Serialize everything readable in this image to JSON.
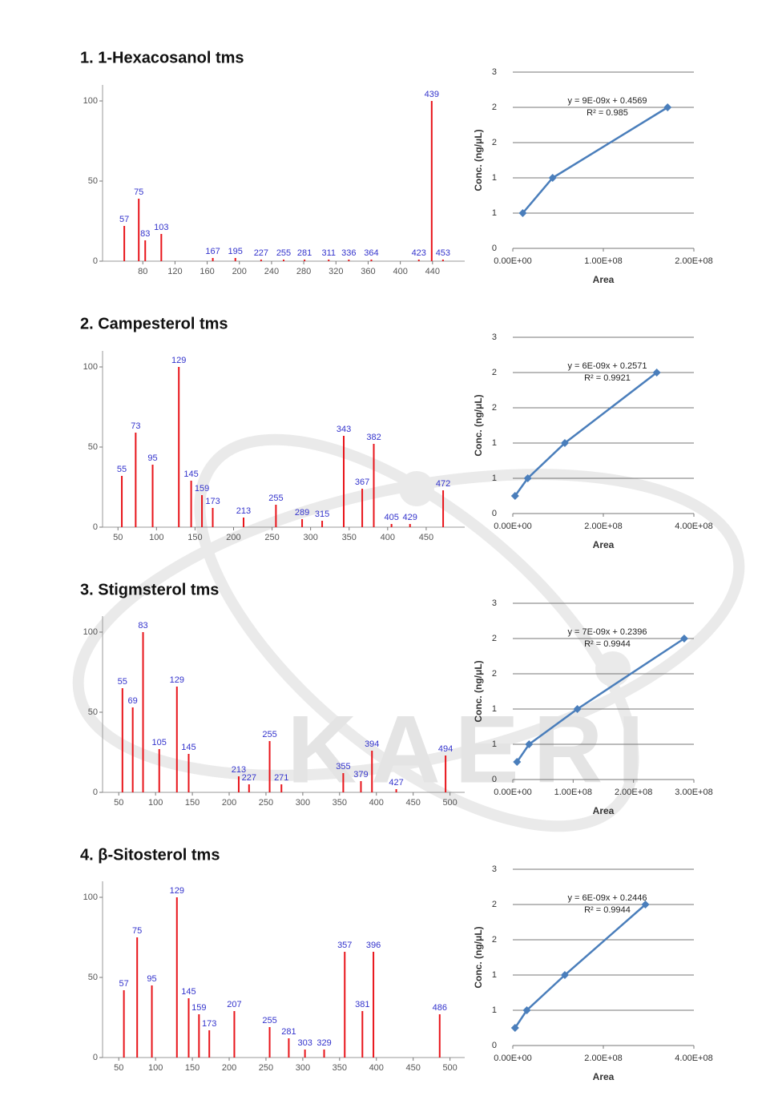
{
  "watermark": "KAERI",
  "chart_data": [
    {
      "type": "bar",
      "title": "1. 1-Hexacosanol tms",
      "color": "#e8141a",
      "x": [
        57,
        75,
        83,
        103,
        167,
        195,
        227,
        255,
        281,
        311,
        336,
        364,
        423,
        439,
        453
      ],
      "values": [
        22,
        39,
        13,
        17,
        2,
        2,
        1,
        1,
        1,
        1,
        1,
        1,
        1,
        100,
        1
      ],
      "xlim": [
        30,
        480
      ],
      "xticks": [
        80,
        120,
        160,
        200,
        240,
        280,
        320,
        360,
        400,
        440
      ],
      "ylim": [
        0,
        110
      ],
      "yticks": [
        0,
        50,
        100
      ]
    },
    {
      "type": "scatter",
      "color": "#4a7ebb",
      "x": [
        11000000,
        44000000,
        171000000
      ],
      "values": [
        0.5,
        1.0,
        2.0
      ],
      "xlim": [
        0,
        200000000
      ],
      "xticks": [
        {
          "value": 0,
          "label": "0.00E+00"
        },
        {
          "value": 100000000,
          "label": "1.00E+08"
        },
        {
          "value": 200000000,
          "label": "2.00E+08"
        }
      ],
      "ylim": [
        0,
        2.5
      ],
      "yticks": [
        0,
        {
          "value": 0.5,
          "label": "1"
        },
        1,
        {
          "value": 1.5,
          "label": "2"
        },
        2,
        {
          "value": 2.5,
          "label": "3"
        }
      ],
      "x_label": "Area",
      "y_label": "Conc. (ng/μL)",
      "grid": true,
      "annotations": [
        "y = 9E-09x + 0.4569",
        "R² = 0.985"
      ]
    },
    {
      "type": "bar",
      "title": "2. Campesterol tms",
      "color": "#e8141a",
      "x": [
        55,
        73,
        95,
        129,
        145,
        159,
        173,
        213,
        255,
        289,
        315,
        343,
        367,
        382,
        405,
        429,
        472
      ],
      "values": [
        32,
        59,
        39,
        100,
        29,
        20,
        12,
        6,
        14,
        5,
        4,
        57,
        24,
        52,
        2,
        2,
        23
      ],
      "xlim": [
        30,
        500
      ],
      "xticks": [
        50,
        100,
        150,
        200,
        250,
        300,
        350,
        400,
        450
      ],
      "ylim": [
        0,
        110
      ],
      "yticks": [
        0,
        50,
        100
      ]
    },
    {
      "type": "scatter",
      "color": "#4a7ebb",
      "x": [
        5000000,
        33000000,
        115000000,
        318000000
      ],
      "values": [
        0.25,
        0.5,
        1.0,
        2.0
      ],
      "xlim": [
        0,
        400000000
      ],
      "xticks": [
        {
          "value": 0,
          "label": "0.00E+00"
        },
        {
          "value": 200000000,
          "label": "2.00E+08"
        },
        {
          "value": 400000000,
          "label": "4.00E+08"
        }
      ],
      "ylim": [
        0,
        2.5
      ],
      "yticks": [
        0,
        {
          "value": 0.5,
          "label": "1"
        },
        1,
        {
          "value": 1.5,
          "label": "2"
        },
        2,
        {
          "value": 2.5,
          "label": "3"
        }
      ],
      "x_label": "Area",
      "y_label": "Conc. (ng/μL)",
      "grid": true,
      "annotations": [
        "y = 6E-09x + 0.2571",
        "R² = 0.9921"
      ]
    },
    {
      "type": "bar",
      "title": "3. Stigmsterol tms",
      "color": "#e8141a",
      "x": [
        55,
        69,
        83,
        105,
        129,
        145,
        213,
        227,
        255,
        271,
        355,
        379,
        394,
        427,
        494
      ],
      "values": [
        65,
        53,
        100,
        27,
        66,
        24,
        10,
        5,
        32,
        5,
        12,
        7,
        26,
        2,
        23
      ],
      "xlim": [
        28,
        520
      ],
      "xticks": [
        50,
        100,
        150,
        200,
        250,
        300,
        350,
        400,
        450,
        500
      ],
      "ylim": [
        0,
        110
      ],
      "yticks": [
        0,
        50,
        100
      ]
    },
    {
      "type": "scatter",
      "color": "#4a7ebb",
      "x": [
        7000000,
        27000000,
        107000000,
        284000000
      ],
      "values": [
        0.25,
        0.5,
        1.0,
        2.0
      ],
      "xlim": [
        0,
        300000000
      ],
      "xticks": [
        {
          "value": 0,
          "label": "0.00E+00"
        },
        {
          "value": 100000000,
          "label": "1.00E+08"
        },
        {
          "value": 200000000,
          "label": "2.00E+08"
        },
        {
          "value": 300000000,
          "label": "3.00E+08"
        }
      ],
      "ylim": [
        0,
        2.5
      ],
      "yticks": [
        0,
        {
          "value": 0.5,
          "label": "1"
        },
        1,
        {
          "value": 1.5,
          "label": "2"
        },
        2,
        {
          "value": 2.5,
          "label": "3"
        }
      ],
      "x_label": "Area",
      "y_label": "Conc. (ng/μL)",
      "grid": true,
      "annotations": [
        "y = 7E-09x + 0.2396",
        "R² = 0.9944"
      ]
    },
    {
      "type": "bar",
      "title": "4. β-Sitosterol tms",
      "color": "#e8141a",
      "x": [
        57,
        75,
        95,
        129,
        145,
        159,
        173,
        207,
        255,
        281,
        303,
        329,
        357,
        381,
        396,
        486
      ],
      "values": [
        42,
        75,
        45,
        100,
        37,
        27,
        17,
        29,
        19,
        12,
        5,
        5,
        66,
        29,
        66,
        27
      ],
      "xlim": [
        28,
        520
      ],
      "xticks": [
        50,
        100,
        150,
        200,
        250,
        300,
        350,
        400,
        450,
        500
      ],
      "ylim": [
        0,
        110
      ],
      "yticks": [
        0,
        50,
        100
      ]
    },
    {
      "type": "scatter",
      "color": "#4a7ebb",
      "x": [
        5000000,
        31000000,
        115000000,
        293000000
      ],
      "values": [
        0.25,
        0.5,
        1.0,
        2.0
      ],
      "xlim": [
        0,
        400000000
      ],
      "xticks": [
        {
          "value": 0,
          "label": "0.00E+00"
        },
        {
          "value": 200000000,
          "label": "2.00E+08"
        },
        {
          "value": 400000000,
          "label": "4.00E+08"
        }
      ],
      "ylim": [
        0,
        2.5
      ],
      "yticks": [
        0,
        {
          "value": 0.5,
          "label": "1"
        },
        1,
        {
          "value": 1.5,
          "label": "2"
        },
        2,
        {
          "value": 2.5,
          "label": "3"
        }
      ],
      "x_label": "Area",
      "y_label": "Conc. (ng/μL)",
      "grid": true,
      "annotations": [
        "y = 6E-09x + 0.2446",
        "R² = 0.9944"
      ]
    }
  ]
}
